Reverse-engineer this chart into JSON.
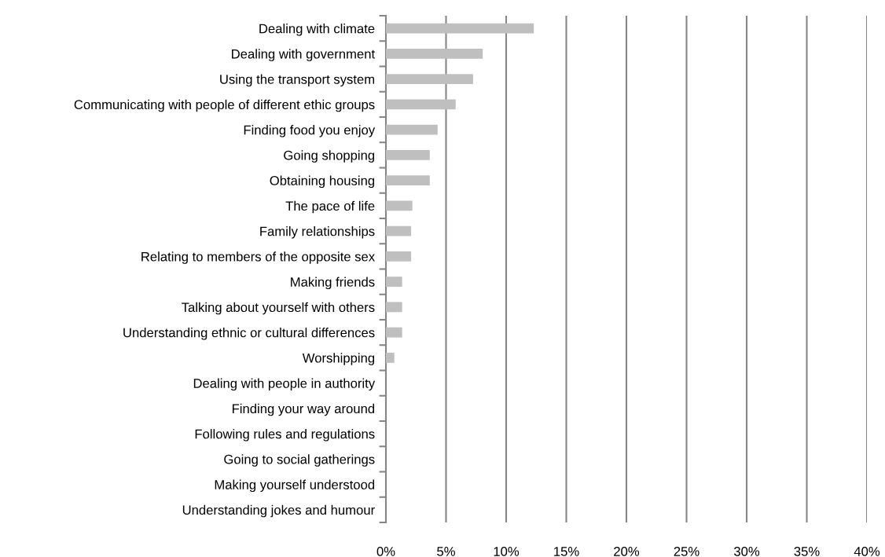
{
  "chart_data": {
    "type": "bar",
    "orientation": "horizontal",
    "categories": [
      "Dealing with climate",
      "Dealing with government",
      "Using the transport system",
      "Communicating with people of different ethic groups",
      "Finding food you enjoy",
      "Going shopping",
      "Obtaining housing",
      "The pace of life",
      "Family relationships",
      "Relating to members of the opposite sex",
      "Making friends",
      "Talking about yourself with others",
      "Understanding ethnic or cultural differences",
      "Worshipping",
      "Dealing with people in authority",
      "Finding your way around",
      "Following rules and regulations",
      "Going to social gatherings",
      "Making yourself understood",
      "Understanding jokes and humour"
    ],
    "values": [
      12.3,
      8.05,
      7.25,
      5.8,
      4.3,
      3.65,
      3.65,
      2.2,
      2.1,
      2.1,
      1.35,
      1.35,
      1.35,
      0.7,
      0,
      0,
      0,
      0,
      0,
      0
    ],
    "color": "#bfbfbf",
    "xlim": [
      0,
      40
    ],
    "xticks": [
      {
        "value": 0,
        "label": "0%"
      },
      {
        "value": 5,
        "label": "5%"
      },
      {
        "value": 10,
        "label": "10%"
      },
      {
        "value": 15,
        "label": "15%"
      },
      {
        "value": 20,
        "label": "20%"
      },
      {
        "value": 25,
        "label": "25%"
      },
      {
        "value": 30,
        "label": "30%"
      },
      {
        "value": 35,
        "label": "35%"
      },
      {
        "value": 40,
        "label": "40%"
      }
    ],
    "grid": "x",
    "legend": false
  }
}
